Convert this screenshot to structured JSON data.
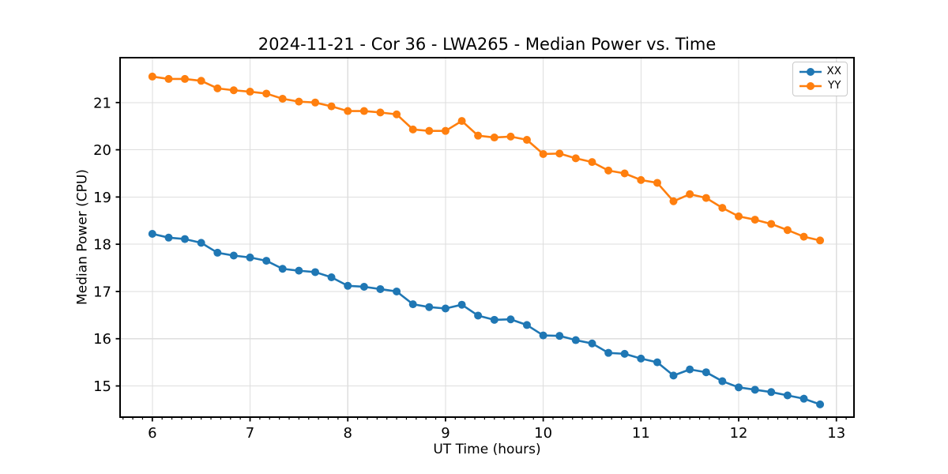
{
  "colors": {
    "background": "#ffffff",
    "axis": "#000000",
    "grid": "#dedede",
    "tick_label": "#000000"
  },
  "chart_data": {
    "type": "line",
    "title": "2024-11-21 - Cor 36 - LWA265 - Median Power vs. Time",
    "xlabel": "UT Time (hours)",
    "ylabel": "Median Power (CPU)",
    "xlim": [
      5.67,
      13.18
    ],
    "ylim": [
      14.34,
      21.95
    ],
    "x_ticks": [
      6,
      7,
      8,
      9,
      10,
      11,
      12,
      13
    ],
    "y_ticks": [
      15,
      16,
      17,
      18,
      19,
      20,
      21
    ],
    "x_minor_tick_step": 0.1,
    "grid": true,
    "legend_position": "upper right",
    "x": [
      6.0,
      6.167,
      6.333,
      6.5,
      6.667,
      6.833,
      7.0,
      7.167,
      7.333,
      7.5,
      7.667,
      7.833,
      8.0,
      8.167,
      8.333,
      8.5,
      8.667,
      8.833,
      9.0,
      9.167,
      9.333,
      9.5,
      9.667,
      9.833,
      10.0,
      10.167,
      10.333,
      10.5,
      10.667,
      10.833,
      11.0,
      11.167,
      11.333,
      11.5,
      11.667,
      11.833,
      12.0,
      12.167,
      12.333,
      12.5,
      12.667,
      12.833
    ],
    "series": [
      {
        "name": "XX",
        "color": "#1f77b4",
        "marker": "circle",
        "values": [
          18.22,
          18.14,
          18.11,
          18.03,
          17.82,
          17.76,
          17.72,
          17.65,
          17.48,
          17.44,
          17.41,
          17.3,
          17.12,
          17.1,
          17.05,
          17.0,
          16.73,
          16.67,
          16.64,
          16.72,
          16.49,
          16.4,
          16.41,
          16.29,
          16.07,
          16.06,
          15.97,
          15.9,
          15.7,
          15.68,
          15.58,
          15.5,
          15.22,
          15.35,
          15.29,
          15.1,
          14.97,
          14.92,
          14.87,
          14.8,
          14.73,
          14.61
        ]
      },
      {
        "name": "YY",
        "color": "#ff7f0e",
        "marker": "circle",
        "values": [
          21.55,
          21.5,
          21.5,
          21.46,
          21.3,
          21.26,
          21.23,
          21.19,
          21.08,
          21.02,
          21.0,
          20.92,
          20.82,
          20.82,
          20.79,
          20.75,
          20.43,
          20.4,
          20.4,
          20.61,
          20.3,
          20.26,
          20.28,
          20.21,
          19.91,
          19.92,
          19.82,
          19.74,
          19.56,
          19.5,
          19.36,
          19.3,
          18.91,
          19.06,
          18.98,
          18.77,
          18.59,
          18.52,
          18.43,
          18.3,
          18.16,
          18.08
        ]
      }
    ]
  }
}
